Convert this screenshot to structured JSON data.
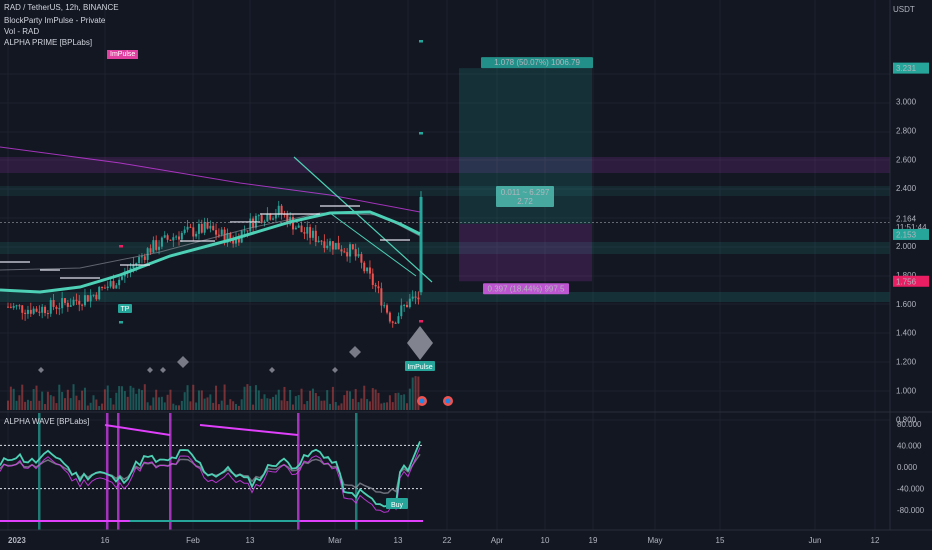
{
  "header": {
    "symbol_line": "RAD / TetherUS, 12h, BINANCE",
    "indicator1": "BlockParty ImPulse - Private",
    "indicator2": "Vol - RAD",
    "indicator3": "ALPHA PRIME [BPLabs]",
    "impulse_tag": "ImPulse",
    "currency": "USDT"
  },
  "price_axis": {
    "ticks": [
      "3.000",
      "2.800",
      "2.600",
      "2.400",
      "2.200",
      "2.000",
      "1.800",
      "1.600",
      "1.400",
      "1.200",
      "1.000",
      "0.800"
    ],
    "badges": [
      {
        "label": "3.231",
        "color": "#26a69a"
      },
      {
        "label": "2.164",
        "color": "#131722"
      },
      {
        "label": "11:51:44",
        "color": "#131722"
      },
      {
        "label": "2.153",
        "color": "#26a69a"
      },
      {
        "label": "1.756",
        "color": "#e91e63"
      }
    ]
  },
  "position_tool": {
    "target_label": "1.078 (50.07%) 1006.79",
    "ratio_line1": "0.011 ~ 6.297",
    "ratio_line2": "2.72",
    "stop_label": "0.397 (18.44%) 997.5"
  },
  "signals": {
    "tp_label": "TP",
    "impulse_label": "ImPulse",
    "buy_label": "Buy"
  },
  "oscillator": {
    "title": "ALPHA WAVE [BPLabs]",
    "ticks": [
      "80.000",
      "40.000",
      "0.000",
      "-40.000",
      "-80.000"
    ]
  },
  "time_axis": {
    "labels": [
      "2023",
      "16",
      "Feb",
      "13",
      "Mar",
      "13",
      "22",
      "Apr",
      "10",
      "19",
      "May",
      "15",
      "Jun",
      "12"
    ]
  },
  "chart_data": {
    "type": "candlestick",
    "title": "RAD / TetherUS, 12h, BINANCE",
    "ylabel": "USDT",
    "ylim": [
      0.7,
      3.3
    ],
    "close_path": [
      [
        "2023-01-01",
        1.58
      ],
      [
        "2023-01-06",
        1.56
      ],
      [
        "2023-01-11",
        1.6
      ],
      [
        "2023-01-16",
        1.66
      ],
      [
        "2023-01-21",
        1.78
      ],
      [
        "2023-01-26",
        1.98
      ],
      [
        "2023-01-31",
        2.08
      ],
      [
        "2023-02-05",
        2.12
      ],
      [
        "2023-02-10",
        2.04
      ],
      [
        "2023-02-14",
        2.2
      ],
      [
        "2023-02-18",
        2.24
      ],
      [
        "2023-02-22",
        2.1
      ],
      [
        "2023-02-27",
        2.02
      ],
      [
        "2023-03-03",
        1.96
      ],
      [
        "2023-03-07",
        1.72
      ],
      [
        "2023-03-10",
        1.48
      ],
      [
        "2023-03-13",
        1.62
      ],
      [
        "2023-03-16",
        1.66
      ],
      [
        "2023-03-17",
        2.36
      ],
      [
        "2023-03-18",
        2.16
      ]
    ],
    "long_position": {
      "entry": 2.153,
      "target": 3.231,
      "stop": 1.756
    },
    "oscillator_ylim": [
      -90,
      90
    ]
  }
}
